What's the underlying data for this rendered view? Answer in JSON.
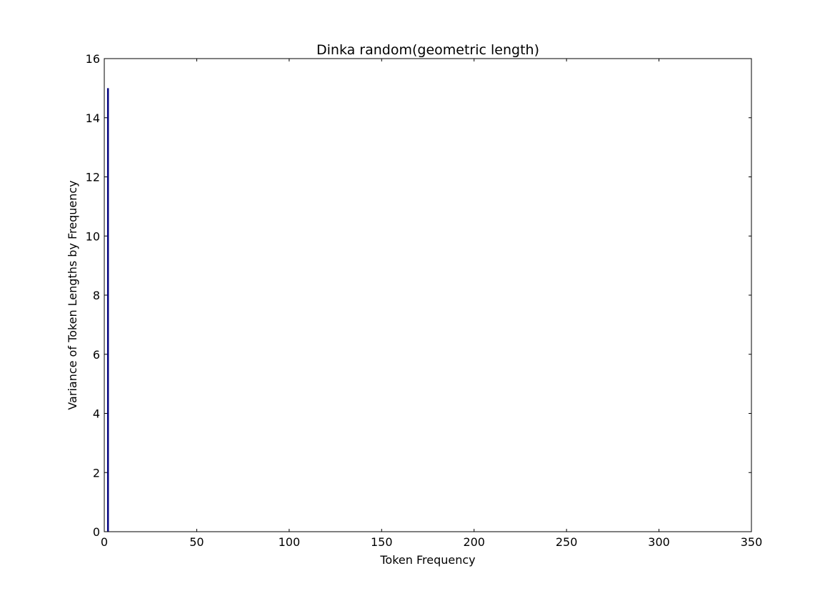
{
  "chart_data": {
    "type": "bar",
    "title": "Dinka random(geometric length)",
    "xlabel": "Token Frequency",
    "ylabel": "Variance of Token Lengths by Frequency",
    "xlim": [
      0,
      350
    ],
    "ylim": [
      0,
      16
    ],
    "xticks": [
      0,
      50,
      100,
      150,
      200,
      250,
      300,
      350
    ],
    "yticks": [
      0,
      2,
      4,
      6,
      8,
      10,
      12,
      14,
      16
    ],
    "grid": false,
    "series": [
      {
        "name": "variance",
        "color": "#000080",
        "x": [
          1,
          2,
          3,
          4,
          5,
          10,
          20,
          50,
          100,
          150,
          300
        ],
        "values": [
          0,
          15,
          0,
          0,
          0,
          0,
          0,
          0,
          0,
          0,
          0
        ]
      }
    ]
  }
}
